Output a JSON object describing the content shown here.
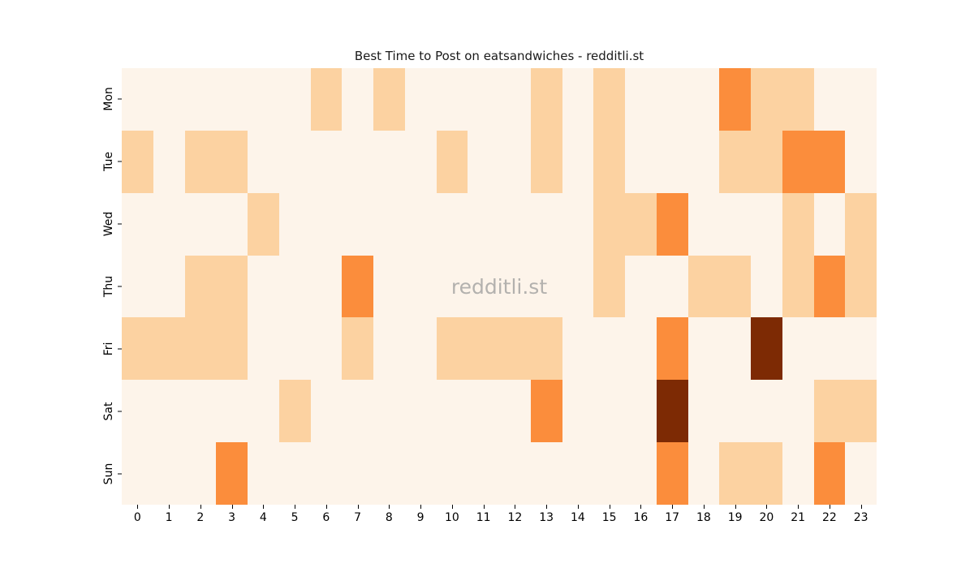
{
  "chart_data": {
    "type": "heatmap",
    "title": "Best Time to Post on eatsandwiches - redditli.st",
    "xlabel": "",
    "ylabel": "",
    "x_categories": [
      "0",
      "1",
      "2",
      "3",
      "4",
      "5",
      "6",
      "7",
      "8",
      "9",
      "10",
      "11",
      "12",
      "13",
      "14",
      "15",
      "16",
      "17",
      "18",
      "19",
      "20",
      "21",
      "22",
      "23"
    ],
    "y_categories": [
      "Mon",
      "Tue",
      "Wed",
      "Thu",
      "Fri",
      "Sat",
      "Sun"
    ],
    "colormap": "Oranges",
    "legend_position": "none",
    "grid_lines": false,
    "level_colors": [
      "#fdf4ea",
      "#fcd2a1",
      "#fb8d3c",
      "#7d2a04"
    ],
    "level_meaning": "relative posting activity 0=none, 1=low, 2=medium, 3=high",
    "grid": [
      [
        0,
        0,
        0,
        0,
        0,
        0,
        1,
        0,
        1,
        0,
        0,
        0,
        0,
        1,
        0,
        1,
        0,
        0,
        0,
        2,
        1,
        1,
        0,
        0
      ],
      [
        1,
        0,
        1,
        1,
        0,
        0,
        0,
        0,
        0,
        0,
        1,
        0,
        0,
        1,
        0,
        1,
        0,
        0,
        0,
        1,
        1,
        2,
        2,
        0
      ],
      [
        0,
        0,
        0,
        0,
        1,
        0,
        0,
        0,
        0,
        0,
        0,
        0,
        0,
        0,
        0,
        1,
        1,
        2,
        0,
        0,
        0,
        1,
        0,
        1
      ],
      [
        0,
        0,
        1,
        1,
        0,
        0,
        0,
        2,
        0,
        0,
        0,
        0,
        0,
        0,
        0,
        1,
        0,
        0,
        1,
        1,
        0,
        1,
        2,
        1
      ],
      [
        1,
        1,
        1,
        1,
        0,
        0,
        0,
        1,
        0,
        0,
        1,
        1,
        1,
        1,
        0,
        0,
        0,
        2,
        0,
        0,
        3,
        0,
        0,
        0
      ],
      [
        0,
        0,
        0,
        0,
        0,
        1,
        0,
        0,
        0,
        0,
        0,
        0,
        0,
        2,
        0,
        0,
        0,
        3,
        0,
        0,
        0,
        0,
        1,
        1
      ],
      [
        0,
        0,
        0,
        2,
        0,
        0,
        0,
        0,
        0,
        0,
        0,
        0,
        0,
        0,
        0,
        0,
        0,
        2,
        0,
        1,
        1,
        0,
        2,
        0
      ]
    ]
  },
  "watermark": {
    "text": "redditli.st",
    "color": "#b3b1ae"
  }
}
